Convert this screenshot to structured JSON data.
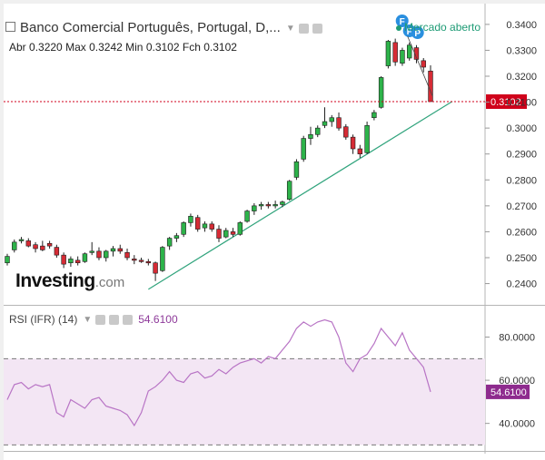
{
  "header": {
    "title": "Banco Comercial Português, Portugal, D,...",
    "ohlc": [
      {
        "label": "Abr",
        "value": "0.3220"
      },
      {
        "label": "Max",
        "value": "0.3242"
      },
      {
        "label": "Min",
        "value": "0.3102"
      },
      {
        "label": "Fch",
        "value": "0.3102"
      }
    ],
    "market_status": "Mercado aberto"
  },
  "logo": {
    "brand": "Investing",
    "tld": ".com"
  },
  "rsi_header": {
    "label": "RSI (IFR) (14)",
    "value": "54.6100"
  },
  "colors": {
    "up": "#2db34a",
    "down": "#d62b35",
    "trendline": "#31a47d",
    "rsi_line": "#b874c5",
    "rsi_band": "#f3e6f4",
    "last_price": "#d0021b"
  },
  "chart_data": [
    {
      "type": "candlestick",
      "ylim": [
        0.236,
        0.3445
      ],
      "yticks": [
        "0.3400",
        "0.3300",
        "0.3200",
        "0.3100",
        "0.3000",
        "0.2900",
        "0.2800",
        "0.2700",
        "0.2600",
        "0.2500",
        "0.2400"
      ],
      "last_price_label": "0.3102",
      "last_price": 0.3102,
      "candles": [
        [
          0.248,
          0.2515,
          0.247,
          0.2505
        ],
        [
          0.253,
          0.257,
          0.252,
          0.256
        ],
        [
          0.2565,
          0.258,
          0.2555,
          0.257
        ],
        [
          0.2565,
          0.2575,
          0.254,
          0.2545
        ],
        [
          0.255,
          0.256,
          0.252,
          0.2535
        ],
        [
          0.2545,
          0.2565,
          0.2525,
          0.253
        ],
        [
          0.2555,
          0.2565,
          0.2535,
          0.2545
        ],
        [
          0.254,
          0.255,
          0.25,
          0.251
        ],
        [
          0.251,
          0.252,
          0.246,
          0.2475
        ],
        [
          0.248,
          0.2505,
          0.2465,
          0.2495
        ],
        [
          0.249,
          0.2505,
          0.247,
          0.248
        ],
        [
          0.2485,
          0.252,
          0.248,
          0.2515
        ],
        [
          0.252,
          0.256,
          0.251,
          0.2525
        ],
        [
          0.2525,
          0.254,
          0.249,
          0.25
        ],
        [
          0.25,
          0.253,
          0.2485,
          0.2525
        ],
        [
          0.2525,
          0.2545,
          0.2505,
          0.2535
        ],
        [
          0.2535,
          0.255,
          0.2515,
          0.2525
        ],
        [
          0.252,
          0.2535,
          0.249,
          0.25
        ],
        [
          0.2495,
          0.251,
          0.2475,
          0.249
        ],
        [
          0.249,
          0.25,
          0.248,
          0.2485
        ],
        [
          0.2485,
          0.2495,
          0.247,
          0.248
        ],
        [
          0.248,
          0.2485,
          0.241,
          0.244
        ],
        [
          0.245,
          0.2545,
          0.2445,
          0.254
        ],
        [
          0.2545,
          0.258,
          0.253,
          0.2575
        ],
        [
          0.2575,
          0.2595,
          0.256,
          0.2585
        ],
        [
          0.259,
          0.264,
          0.258,
          0.2635
        ],
        [
          0.2635,
          0.267,
          0.262,
          0.266
        ],
        [
          0.2655,
          0.2665,
          0.26,
          0.261
        ],
        [
          0.2615,
          0.264,
          0.26,
          0.263
        ],
        [
          0.263,
          0.264,
          0.26,
          0.261
        ],
        [
          0.261,
          0.2625,
          0.256,
          0.2575
        ],
        [
          0.258,
          0.2615,
          0.2575,
          0.2605
        ],
        [
          0.26,
          0.2615,
          0.258,
          0.259
        ],
        [
          0.259,
          0.264,
          0.2585,
          0.2635
        ],
        [
          0.264,
          0.2685,
          0.2635,
          0.268
        ],
        [
          0.268,
          0.271,
          0.2665,
          0.27
        ],
        [
          0.27,
          0.2715,
          0.2685,
          0.2705
        ],
        [
          0.2705,
          0.2715,
          0.269,
          0.27
        ],
        [
          0.27,
          0.272,
          0.269,
          0.2705
        ],
        [
          0.2705,
          0.272,
          0.2695,
          0.2715
        ],
        [
          0.2725,
          0.28,
          0.272,
          0.2795
        ],
        [
          0.281,
          0.288,
          0.28,
          0.287
        ],
        [
          0.288,
          0.297,
          0.287,
          0.296
        ],
        [
          0.296,
          0.3005,
          0.2935,
          0.2975
        ],
        [
          0.2975,
          0.301,
          0.2965,
          0.3
        ],
        [
          0.301,
          0.308,
          0.3,
          0.3025
        ],
        [
          0.3025,
          0.305,
          0.3005,
          0.304
        ],
        [
          0.304,
          0.306,
          0.299,
          0.3
        ],
        [
          0.3005,
          0.3015,
          0.2955,
          0.2965
        ],
        [
          0.2965,
          0.2975,
          0.29,
          0.292
        ],
        [
          0.292,
          0.2935,
          0.2885,
          0.29
        ],
        [
          0.2905,
          0.3025,
          0.29,
          0.301
        ],
        [
          0.304,
          0.307,
          0.303,
          0.306
        ],
        [
          0.308,
          0.32,
          0.3075,
          0.3195
        ],
        [
          0.324,
          0.334,
          0.323,
          0.3335
        ],
        [
          0.333,
          0.3345,
          0.324,
          0.3255
        ],
        [
          0.325,
          0.331,
          0.324,
          0.33
        ],
        [
          0.327,
          0.333,
          0.326,
          0.332
        ],
        [
          0.331,
          0.332,
          0.325,
          0.3265
        ],
        [
          0.326,
          0.327,
          0.3215,
          0.3235
        ],
        [
          0.322,
          0.3242,
          0.3102,
          0.3102
        ]
      ],
      "trendline": [
        [
          0.2378,
          0.3103
        ]
      ],
      "annotation": "F P"
    },
    {
      "type": "line",
      "title": "RSI (IFR) (14)",
      "ylim": [
        28.5,
        92
      ],
      "yticks": [
        "80.0000",
        "60.0000",
        "40.0000"
      ],
      "band": [
        30,
        70
      ],
      "last_value_label": "54.6100",
      "values": [
        51,
        58,
        59,
        56,
        58,
        57,
        58,
        45,
        43,
        51,
        49,
        47,
        51,
        52,
        48,
        47,
        46,
        44,
        39,
        45,
        55,
        57,
        60,
        64,
        60,
        59,
        63,
        64,
        61,
        62,
        65,
        63,
        66,
        68,
        69,
        70,
        68,
        71,
        70,
        74,
        78,
        84,
        87,
        85,
        87,
        88,
        87,
        80,
        68,
        64,
        70,
        72,
        77,
        84,
        80,
        76,
        82,
        74,
        70,
        66,
        54.61
      ]
    }
  ]
}
